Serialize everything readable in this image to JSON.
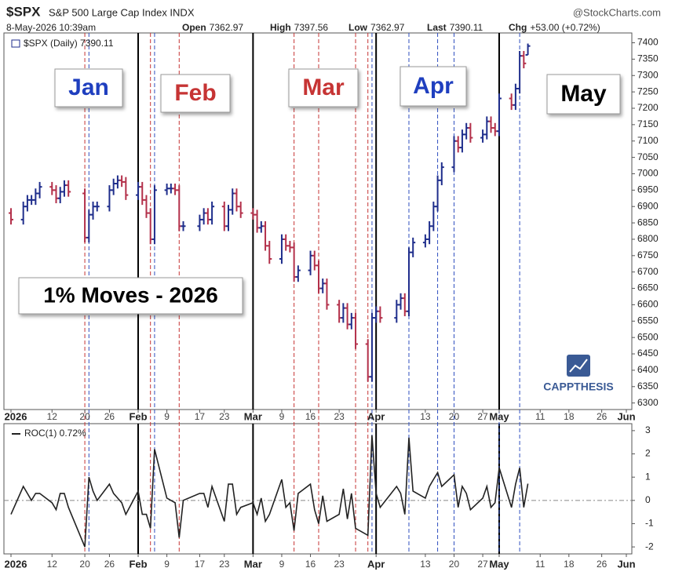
{
  "header": {
    "symbol": "$SPX",
    "name": "S&P 500 Large Cap Index INDX",
    "source": "@StockCharts.com",
    "timestamp": "8-May-2026 10:39am",
    "quote": [
      {
        "label": "Open",
        "value": "7362.97"
      },
      {
        "label": "High",
        "value": "7397.56"
      },
      {
        "label": "Low",
        "value": "7362.97"
      },
      {
        "label": "Last",
        "value": "7390.11"
      },
      {
        "label": "Chg",
        "value": "+53.00 (+0.72%)"
      }
    ]
  },
  "chart_data": [
    {
      "type": "ohlc",
      "legend": "$SPX (Daily) 7390.11",
      "up_color": "#1f2e8c",
      "down_color": "#b3304a",
      "x": [
        "2026-01-02",
        "2026-01-05",
        "2026-01-06",
        "2026-01-07",
        "2026-01-08",
        "2026-01-09",
        "2026-01-12",
        "2026-01-13",
        "2026-01-14",
        "2026-01-15",
        "2026-01-16",
        "2026-01-20",
        "2026-01-21",
        "2026-01-22",
        "2026-01-23",
        "2026-01-26",
        "2026-01-27",
        "2026-01-28",
        "2026-01-29",
        "2026-01-30",
        "2026-02-02",
        "2026-02-03",
        "2026-02-04",
        "2026-02-05",
        "2026-02-06",
        "2026-02-09",
        "2026-02-10",
        "2026-02-11",
        "2026-02-12",
        "2026-02-13",
        "2026-02-17",
        "2026-02-18",
        "2026-02-19",
        "2026-02-20",
        "2026-02-23",
        "2026-02-24",
        "2026-02-25",
        "2026-02-26",
        "2026-02-27",
        "2026-03-02",
        "2026-03-03",
        "2026-03-04",
        "2026-03-05",
        "2026-03-06",
        "2026-03-09",
        "2026-03-10",
        "2026-03-11",
        "2026-03-12",
        "2026-03-13",
        "2026-03-16",
        "2026-03-17",
        "2026-03-18",
        "2026-03-19",
        "2026-03-20",
        "2026-03-23",
        "2026-03-24",
        "2026-03-25",
        "2026-03-26",
        "2026-03-27",
        "2026-03-30",
        "2026-03-31",
        "2026-04-01",
        "2026-04-02",
        "2026-04-06",
        "2026-04-07",
        "2026-04-08",
        "2026-04-09",
        "2026-04-10",
        "2026-04-13",
        "2026-04-14",
        "2026-04-15",
        "2026-04-16",
        "2026-04-17",
        "2026-04-20",
        "2026-04-21",
        "2026-04-22",
        "2026-04-23",
        "2026-04-24",
        "2026-04-27",
        "2026-04-28",
        "2026-04-29",
        "2026-04-30",
        "2026-05-01",
        "2026-05-04",
        "2026-05-05",
        "2026-05-06",
        "2026-05-07",
        "2026-05-08"
      ],
      "open": [
        6880,
        6860,
        6900,
        6920,
        6920,
        6940,
        6960,
        6950,
        6925,
        6945,
        6965,
        6940,
        6805,
        6875,
        6900,
        6900,
        6950,
        6970,
        6980,
        6975,
        6935,
        6960,
        6920,
        6880,
        6800,
        6950,
        6955,
        6955,
        6950,
        6840,
        6840,
        6860,
        6880,
        6860,
        6900,
        6840,
        6890,
        6940,
        6900,
        6880,
        6875,
        6835,
        6840,
        6780,
        6740,
        6800,
        6780,
        6775,
        6685,
        6705,
        6750,
        6720,
        6650,
        6665,
        6600,
        6560,
        6590,
        6540,
        6560,
        6480,
        6380,
        6560,
        6580,
        6560,
        6600,
        6620,
        6580,
        6760,
        6790,
        6800,
        6840,
        6900,
        6980,
        7020,
        7100,
        7080,
        7120,
        7140,
        7110,
        7120,
        7160,
        7140,
        7130,
        7230,
        7210,
        7260,
        7360,
        7362.97
      ],
      "high": [
        6895,
        6915,
        6935,
        6935,
        6955,
        6975,
        6975,
        6965,
        6960,
        6980,
        6980,
        6955,
        6890,
        6915,
        6915,
        6965,
        6985,
        6995,
        6995,
        6990,
        6975,
        6975,
        6935,
        6895,
        6965,
        6970,
        6970,
        6970,
        6965,
        6855,
        6875,
        6895,
        6895,
        6915,
        6915,
        6905,
        6955,
        6955,
        6915,
        6895,
        6890,
        6855,
        6855,
        6795,
        6815,
        6815,
        6795,
        6790,
        6720,
        6765,
        6765,
        6735,
        6680,
        6680,
        6615,
        6605,
        6605,
        6575,
        6575,
        6495,
        6575,
        6595,
        6595,
        6615,
        6635,
        6635,
        6775,
        6805,
        6815,
        6855,
        6915,
        6995,
        7035,
        7115,
        7115,
        7135,
        7155,
        7155,
        7135,
        7175,
        7175,
        7155,
        7245,
        7245,
        7275,
        7375,
        7375,
        7397.56
      ],
      "low": [
        6845,
        6845,
        6885,
        6905,
        6905,
        6925,
        6935,
        6910,
        6910,
        6930,
        6930,
        6790,
        6790,
        6860,
        6885,
        6885,
        6935,
        6955,
        6960,
        6920,
        6920,
        6905,
        6865,
        6785,
        6785,
        6935,
        6940,
        6935,
        6825,
        6825,
        6825,
        6845,
        6845,
        6845,
        6825,
        6825,
        6875,
        6885,
        6865,
        6860,
        6820,
        6820,
        6765,
        6725,
        6725,
        6765,
        6760,
        6670,
        6670,
        6690,
        6705,
        6635,
        6635,
        6585,
        6545,
        6545,
        6525,
        6525,
        6465,
        6365,
        6365,
        6545,
        6545,
        6545,
        6585,
        6565,
        6565,
        6745,
        6775,
        6785,
        6825,
        6885,
        6965,
        7005,
        7065,
        7065,
        7105,
        7095,
        7095,
        7105,
        7125,
        7115,
        7115,
        7195,
        7195,
        7245,
        7322,
        7362.97
      ],
      "close": [
        6860,
        6900,
        6920,
        6920,
        6940,
        6960,
        6950,
        6925,
        6945,
        6965,
        6945,
        6805,
        6875,
        6900,
        6900,
        6950,
        6970,
        6980,
        6975,
        6935,
        6960,
        6920,
        6880,
        6800,
        6950,
        6955,
        6955,
        6950,
        6840,
        6840,
        6860,
        6880,
        6860,
        6900,
        6840,
        6890,
        6940,
        6900,
        6880,
        6875,
        6835,
        6840,
        6780,
        6740,
        6800,
        6780,
        6775,
        6685,
        6705,
        6750,
        6720,
        6650,
        6665,
        6600,
        6560,
        6590,
        6540,
        6560,
        6480,
        6380,
        6560,
        6580,
        6560,
        6600,
        6620,
        6580,
        6760,
        6790,
        6800,
        6840,
        6900,
        6980,
        7020,
        7100,
        7080,
        7120,
        7140,
        7110,
        7120,
        7160,
        7140,
        7130,
        7230,
        7210,
        7260,
        7360,
        7337,
        7390.11
      ],
      "ylim": [
        6280,
        7430
      ],
      "yticks": [
        6300,
        6350,
        6400,
        6450,
        6500,
        6550,
        6600,
        6650,
        6700,
        6750,
        6800,
        6850,
        6900,
        6950,
        7000,
        7050,
        7100,
        7150,
        7200,
        7250,
        7300,
        7350,
        7400
      ],
      "xlim": [
        "2026-01-02",
        "2026-06-01"
      ],
      "xticks": [
        {
          "value": "2026-01-02",
          "label": "2026"
        },
        {
          "value": "2026-01-12",
          "label": "12"
        },
        {
          "value": "2026-01-20",
          "label": "20"
        },
        {
          "value": "2026-01-26",
          "label": "26"
        },
        {
          "value": "2026-02-02",
          "label": "Feb"
        },
        {
          "value": "2026-02-09",
          "label": "9"
        },
        {
          "value": "2026-02-17",
          "label": "17"
        },
        {
          "value": "2026-02-23",
          "label": "23"
        },
        {
          "value": "2026-03-02",
          "label": "Mar"
        },
        {
          "value": "2026-03-09",
          "label": "9"
        },
        {
          "value": "2026-03-16",
          "label": "16"
        },
        {
          "value": "2026-03-23",
          "label": "23"
        },
        {
          "value": "2026-04-01",
          "label": "Apr"
        },
        {
          "value": "2026-04-13",
          "label": "13"
        },
        {
          "value": "2026-04-20",
          "label": "20"
        },
        {
          "value": "2026-04-27",
          "label": "27"
        },
        {
          "value": "2026-05-01",
          "label": "May"
        },
        {
          "value": "2026-05-11",
          "label": "11"
        },
        {
          "value": "2026-05-18",
          "label": "18"
        },
        {
          "value": "2026-05-26",
          "label": "26"
        },
        {
          "value": "2026-06-01",
          "label": "Jun"
        }
      ],
      "annotations": [
        {
          "text": "Jan",
          "color": "#1f3fbf"
        },
        {
          "text": "Feb",
          "color": "#c63434"
        },
        {
          "text": "Mar",
          "color": "#c63434"
        },
        {
          "text": "Apr",
          "color": "#1f3fbf"
        },
        {
          "text": "May",
          "color": "#000000"
        },
        {
          "text": "1% Moves - 2026",
          "color": "#000000"
        }
      ],
      "watermark": "CAPPTHESIS"
    },
    {
      "type": "line",
      "legend": "ROC(1) 0.72%",
      "color": "#222222",
      "values": [
        -0.6,
        0.6,
        0.3,
        0,
        0.3,
        0.3,
        -0.1,
        -0.4,
        0.3,
        0.3,
        -0.3,
        -2.0,
        1.0,
        0.4,
        0,
        0.7,
        0.3,
        0.1,
        -0.1,
        -0.6,
        0.4,
        -0.6,
        -0.6,
        -1.2,
        2.2,
        0.1,
        0,
        -0.1,
        -1.6,
        0,
        0.3,
        0.3,
        -0.3,
        0.6,
        -0.9,
        0.7,
        0.7,
        -0.6,
        -0.3,
        -0.1,
        -0.6,
        0.1,
        -0.9,
        -0.6,
        0.9,
        -0.3,
        -0.1,
        -1.3,
        0.3,
        0.7,
        -0.4,
        -1.0,
        0.2,
        -0.9,
        -0.6,
        0.5,
        -0.8,
        0.3,
        -1.2,
        -1.5,
        2.8,
        0.3,
        -0.3,
        0.6,
        0.3,
        -0.6,
        2.7,
        0.4,
        0.1,
        0.6,
        0.9,
        1.2,
        0.6,
        1.1,
        -0.3,
        0.6,
        0.3,
        -0.4,
        0.1,
        0.6,
        -0.3,
        -0.1,
        1.4,
        -0.3,
        0.7,
        1.4,
        -0.3,
        0.72
      ],
      "ylim": [
        -2.3,
        3.3
      ],
      "yticks": [
        -2,
        -1,
        0,
        1,
        2,
        3
      ],
      "xlim": [
        "2026-01-02",
        "2026-06-01"
      ],
      "xticks": [
        {
          "value": "2026-01-02",
          "label": "2026"
        },
        {
          "value": "2026-01-12",
          "label": "12"
        },
        {
          "value": "2026-01-20",
          "label": "20"
        },
        {
          "value": "2026-01-26",
          "label": "26"
        },
        {
          "value": "2026-02-02",
          "label": "Feb"
        },
        {
          "value": "2026-02-09",
          "label": "9"
        },
        {
          "value": "2026-02-17",
          "label": "17"
        },
        {
          "value": "2026-02-23",
          "label": "23"
        },
        {
          "value": "2026-03-02",
          "label": "Mar"
        },
        {
          "value": "2026-03-09",
          "label": "9"
        },
        {
          "value": "2026-03-16",
          "label": "16"
        },
        {
          "value": "2026-03-23",
          "label": "23"
        },
        {
          "value": "2026-04-01",
          "label": "Apr"
        },
        {
          "value": "2026-04-13",
          "label": "13"
        },
        {
          "value": "2026-04-20",
          "label": "20"
        },
        {
          "value": "2026-04-27",
          "label": "27"
        },
        {
          "value": "2026-05-01",
          "label": "May"
        },
        {
          "value": "2026-05-11",
          "label": "11"
        },
        {
          "value": "2026-05-18",
          "label": "18"
        },
        {
          "value": "2026-05-26",
          "label": "26"
        },
        {
          "value": "2026-06-01",
          "label": "Jun"
        }
      ]
    }
  ]
}
